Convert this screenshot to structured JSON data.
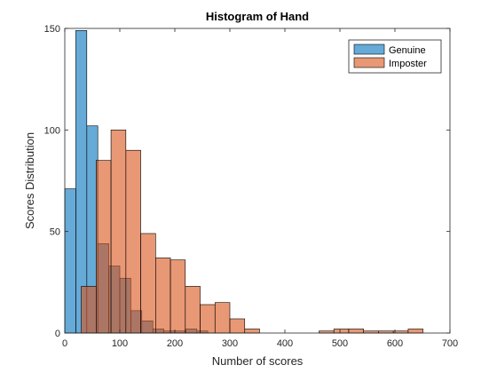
{
  "chart_data": {
    "type": "bar",
    "title": "Histogram of Hand",
    "xlabel": "Number of scores",
    "ylabel": "Scores Distribution",
    "xlim": [
      0,
      700
    ],
    "ylim": [
      0,
      150
    ],
    "xticks": [
      0,
      100,
      200,
      300,
      400,
      500,
      600,
      700
    ],
    "yticks": [
      0,
      50,
      100,
      150
    ],
    "grid": false,
    "legend_position": "top-right",
    "series": [
      {
        "name": "Genuine",
        "color": "#0072BD",
        "opacity": 0.6,
        "bins": [
          {
            "x0": 0,
            "x1": 20,
            "count": 71
          },
          {
            "x0": 20,
            "x1": 40,
            "count": 149
          },
          {
            "x0": 40,
            "x1": 60,
            "count": 102
          },
          {
            "x0": 60,
            "x1": 80,
            "count": 44
          },
          {
            "x0": 80,
            "x1": 100,
            "count": 33
          },
          {
            "x0": 100,
            "x1": 120,
            "count": 27
          },
          {
            "x0": 120,
            "x1": 140,
            "count": 11
          },
          {
            "x0": 140,
            "x1": 160,
            "count": 6
          },
          {
            "x0": 160,
            "x1": 180,
            "count": 2
          },
          {
            "x0": 180,
            "x1": 200,
            "count": 1
          },
          {
            "x0": 200,
            "x1": 220,
            "count": 1
          },
          {
            "x0": 220,
            "x1": 240,
            "count": 2
          },
          {
            "x0": 240,
            "x1": 260,
            "count": 1
          }
        ]
      },
      {
        "name": "Imposter",
        "color": "#D95319",
        "opacity": 0.6,
        "bins": [
          {
            "x0": 30,
            "x1": 57,
            "count": 23
          },
          {
            "x0": 57,
            "x1": 84,
            "count": 85
          },
          {
            "x0": 84,
            "x1": 111,
            "count": 100
          },
          {
            "x0": 111,
            "x1": 138,
            "count": 90
          },
          {
            "x0": 138,
            "x1": 165,
            "count": 49
          },
          {
            "x0": 165,
            "x1": 192,
            "count": 37
          },
          {
            "x0": 192,
            "x1": 219,
            "count": 36
          },
          {
            "x0": 219,
            "x1": 246,
            "count": 23
          },
          {
            "x0": 246,
            "x1": 273,
            "count": 14
          },
          {
            "x0": 273,
            "x1": 300,
            "count": 15
          },
          {
            "x0": 300,
            "x1": 327,
            "count": 7
          },
          {
            "x0": 327,
            "x1": 354,
            "count": 2
          },
          {
            "x0": 462,
            "x1": 489,
            "count": 1
          },
          {
            "x0": 489,
            "x1": 516,
            "count": 2
          },
          {
            "x0": 516,
            "x1": 543,
            "count": 2
          },
          {
            "x0": 543,
            "x1": 570,
            "count": 1
          },
          {
            "x0": 570,
            "x1": 597,
            "count": 1
          },
          {
            "x0": 597,
            "x1": 624,
            "count": 1
          },
          {
            "x0": 624,
            "x1": 651,
            "count": 2
          }
        ]
      }
    ]
  }
}
